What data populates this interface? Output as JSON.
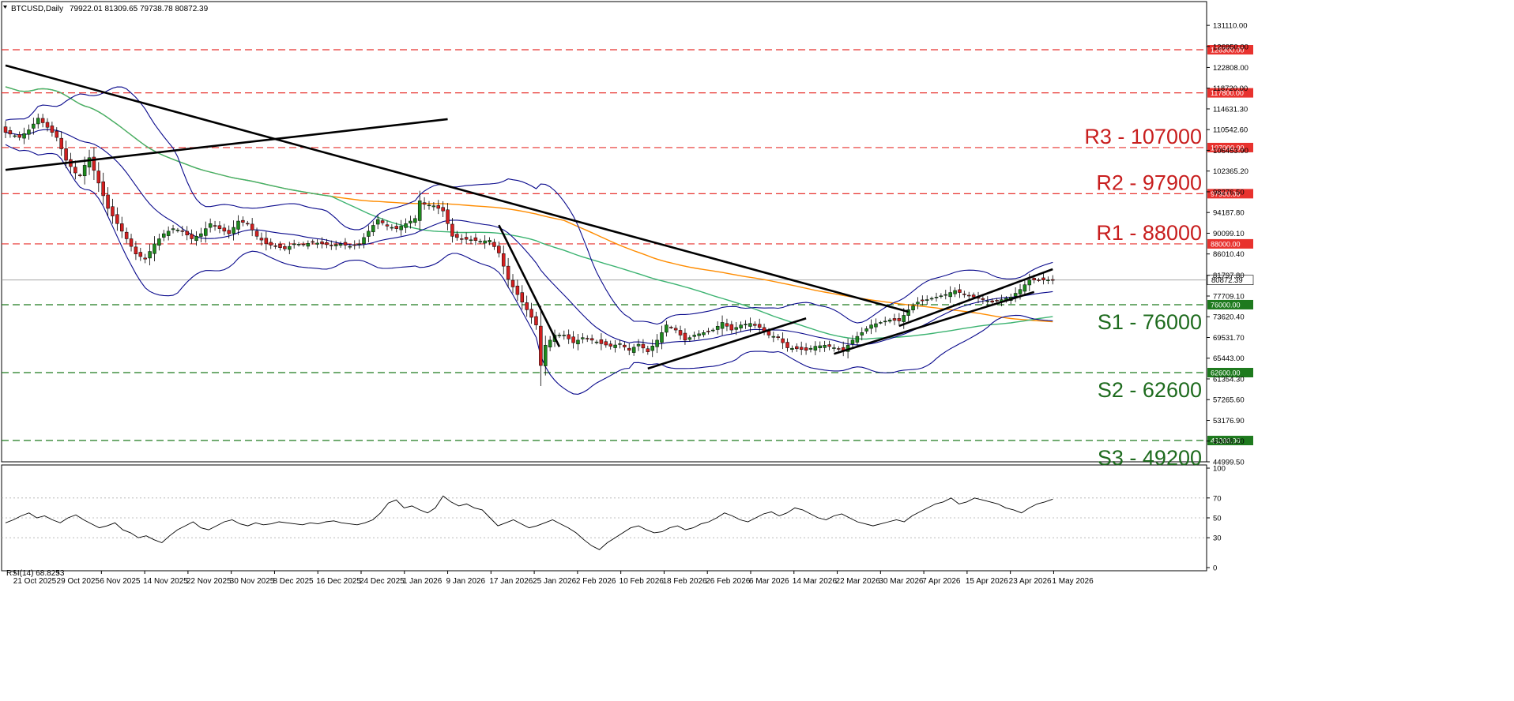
{
  "header": {
    "symbol": "BTCUSD,Daily",
    "ohlc": "79922.01 81309.65 79738.78 80872.39",
    "rsi_label": "RSI(14) 68.8253"
  },
  "colors": {
    "resistance": "#e8322e",
    "support": "#1e7a1e",
    "candle_up": "#1e8a1e",
    "candle_down": "#d22020",
    "bollinger": "#0a0a8c",
    "sma_orange": "#ff8c00",
    "sma_green": "#3cb371",
    "trendline": "#000000",
    "rsi_line": "#000000"
  },
  "chart_data": {
    "type": "candlestick",
    "title": "BTCUSD,Daily",
    "last_price": 80872.39,
    "last_price_label": "80872.39",
    "ylim": [
      44999.5,
      133000
    ],
    "y_ticks": [
      "131110.00",
      "126950.00",
      "122808.00",
      "118720.00",
      "114631.30",
      "110542.60",
      "106453.90",
      "102365.20",
      "98276.50",
      "94187.80",
      "90099.10",
      "86010.40",
      "81797.80",
      "77709.10",
      "73620.40",
      "69531.70",
      "65443.00",
      "61354.30",
      "57265.60",
      "53176.90",
      "49088.20",
      "44999.50"
    ],
    "x_ticks": [
      "21 Oct 2025",
      "29 Oct 2025",
      "6 Nov 2025",
      "14 Nov 2025",
      "22 Nov 2025",
      "30 Nov 2025",
      "8 Dec 2025",
      "16 Dec 2025",
      "24 Dec 2025",
      "1 Jan 2026",
      "9 Jan 2026",
      "17 Jan 2026",
      "25 Jan 2026",
      "2 Feb 2026",
      "10 Feb 2026",
      "18 Feb 2026",
      "26 Feb 2026",
      "6 Mar 2026",
      "14 Mar 2026",
      "22 Mar 2026",
      "30 Mar 2026",
      "7 Apr 2026",
      "15 Apr 2026",
      "23 Apr 2026",
      "1 May 2026"
    ],
    "levels": [
      {
        "label": "R3 - 107000",
        "value": 107000,
        "tag": "107000.00",
        "kind": "resistance"
      },
      {
        "label": "R2 - 97900",
        "value": 97900,
        "tag": "97900.00",
        "kind": "resistance"
      },
      {
        "label": "R1 - 88000",
        "value": 88000,
        "tag": "88000.00",
        "kind": "resistance"
      },
      {
        "label": "S1 - 76000",
        "value": 76000,
        "tag": "76000.00",
        "kind": "support"
      },
      {
        "label": "S2 - 62600",
        "value": 62600,
        "tag": "62600.00",
        "kind": "support"
      },
      {
        "label": "S3 - 49200",
        "value": 49200,
        "tag": "49200.00",
        "kind": "support"
      },
      {
        "label": "",
        "value": 126300,
        "tag": "126300.00",
        "kind": "resistance"
      },
      {
        "label": "",
        "value": 117800,
        "tag": "117800.00",
        "kind": "resistance"
      }
    ],
    "close_path": [
      [
        0,
        110000
      ],
      [
        3,
        109000
      ],
      [
        5,
        110500
      ],
      [
        7,
        112800
      ],
      [
        9,
        111000
      ],
      [
        11,
        109000
      ],
      [
        13,
        104500
      ],
      [
        15,
        102000
      ],
      [
        16,
        101500
      ],
      [
        17,
        103500
      ],
      [
        18,
        105000
      ],
      [
        20,
        100000
      ],
      [
        22,
        95000
      ],
      [
        24,
        92000
      ],
      [
        26,
        89000
      ],
      [
        28,
        86000
      ],
      [
        30,
        85000
      ],
      [
        32,
        88000
      ],
      [
        34,
        90000
      ],
      [
        36,
        91000
      ],
      [
        38,
        90500
      ],
      [
        40,
        89000
      ],
      [
        42,
        90000
      ],
      [
        44,
        92000
      ],
      [
        46,
        91000
      ],
      [
        48,
        90000
      ],
      [
        50,
        92500
      ],
      [
        52,
        92000
      ],
      [
        54,
        89500
      ],
      [
        56,
        88000
      ],
      [
        58,
        87500
      ],
      [
        60,
        87000
      ],
      [
        62,
        88000
      ],
      [
        64,
        87900
      ],
      [
        66,
        88300
      ],
      [
        68,
        88000
      ],
      [
        70,
        87700
      ],
      [
        72,
        88000
      ],
      [
        74,
        87500
      ],
      [
        76,
        88000
      ],
      [
        78,
        90500
      ],
      [
        80,
        92800
      ],
      [
        82,
        91500
      ],
      [
        84,
        91000
      ],
      [
        86,
        92000
      ],
      [
        88,
        93000
      ],
      [
        89,
        96500
      ],
      [
        90,
        95800
      ],
      [
        92,
        95500
      ],
      [
        94,
        94500
      ],
      [
        96,
        89500
      ],
      [
        98,
        89000
      ],
      [
        100,
        88800
      ],
      [
        102,
        88500
      ],
      [
        104,
        88700
      ],
      [
        106,
        86200
      ],
      [
        108,
        81000
      ],
      [
        110,
        78000
      ],
      [
        112,
        75000
      ],
      [
        114,
        72000
      ],
      [
        115,
        64000
      ],
      [
        116,
        68000
      ],
      [
        118,
        70000
      ],
      [
        120,
        70000
      ],
      [
        122,
        68500
      ],
      [
        124,
        69500
      ],
      [
        126,
        69000
      ],
      [
        128,
        68300
      ],
      [
        130,
        67800
      ],
      [
        132,
        68300
      ],
      [
        134,
        67000
      ],
      [
        136,
        68200
      ],
      [
        138,
        66700
      ],
      [
        140,
        69000
      ],
      [
        142,
        72000
      ],
      [
        144,
        71000
      ],
      [
        146,
        69000
      ],
      [
        148,
        70000
      ],
      [
        150,
        70500
      ],
      [
        152,
        71000
      ],
      [
        154,
        72500
      ],
      [
        156,
        71000
      ],
      [
        158,
        72000
      ],
      [
        160,
        72300
      ],
      [
        162,
        71500
      ],
      [
        164,
        70000
      ],
      [
        166,
        69500
      ],
      [
        168,
        67500
      ],
      [
        170,
        67300
      ],
      [
        172,
        67000
      ],
      [
        174,
        67800
      ],
      [
        176,
        68000
      ],
      [
        178,
        67500
      ],
      [
        180,
        67000
      ],
      [
        182,
        69000
      ],
      [
        184,
        70500
      ],
      [
        186,
        72000
      ],
      [
        188,
        72500
      ],
      [
        190,
        73000
      ],
      [
        192,
        72800
      ],
      [
        194,
        75000
      ],
      [
        196,
        76500
      ],
      [
        198,
        77000
      ],
      [
        200,
        77500
      ],
      [
        202,
        78000
      ],
      [
        204,
        78800
      ],
      [
        206,
        78000
      ],
      [
        208,
        77500
      ],
      [
        210,
        77000
      ],
      [
        212,
        76500
      ],
      [
        214,
        77000
      ],
      [
        216,
        77500
      ],
      [
        218,
        79000
      ],
      [
        220,
        80872
      ]
    ],
    "trendlines": [
      {
        "from": [
          0,
          102600
        ],
        "to": [
          95,
          112600
        ]
      },
      {
        "from": [
          0,
          123200
        ],
        "to": [
          194,
          74600
        ]
      },
      {
        "from": [
          106,
          91700
        ],
        "to": [
          119,
          67700
        ]
      },
      {
        "from": [
          138,
          63400
        ],
        "to": [
          172,
          73300
        ]
      },
      {
        "from": [
          178,
          66300
        ],
        "to": [
          221,
          78500
        ]
      },
      {
        "from": [
          192,
          71800
        ],
        "to": [
          225,
          83000
        ]
      }
    ],
    "rsi": {
      "label": "RSI(14)",
      "last": 68.8253,
      "ylim": [
        0,
        100
      ],
      "ticks": [
        0,
        30,
        50,
        70,
        100
      ],
      "levels": [
        30,
        50,
        70
      ],
      "values": [
        45,
        48,
        52,
        55,
        50,
        52,
        48,
        45,
        50,
        53,
        48,
        44,
        40,
        42,
        45,
        38,
        35,
        30,
        32,
        28,
        25,
        32,
        38,
        42,
        46,
        40,
        38,
        42,
        46,
        48,
        44,
        42,
        45,
        43,
        44,
        46,
        45,
        44,
        43,
        45,
        44,
        46,
        47,
        45,
        44,
        43,
        45,
        48,
        55,
        65,
        68,
        60,
        62,
        58,
        55,
        60,
        72,
        66,
        62,
        64,
        60,
        58,
        50,
        42,
        45,
        48,
        44,
        40,
        42,
        45,
        48,
        44,
        40,
        35,
        28,
        22,
        18,
        25,
        30,
        35,
        40,
        42,
        38,
        35,
        36,
        40,
        42,
        38,
        40,
        44,
        46,
        50,
        55,
        52,
        48,
        46,
        50,
        54,
        56,
        52,
        55,
        60,
        58,
        54,
        50,
        48,
        52,
        54,
        50,
        46,
        44,
        42,
        44,
        46,
        48,
        46,
        52,
        56,
        60,
        64,
        66,
        70,
        64,
        66,
        70,
        68,
        66,
        64,
        60,
        58,
        55,
        60,
        64,
        66,
        68.8
      ]
    }
  }
}
